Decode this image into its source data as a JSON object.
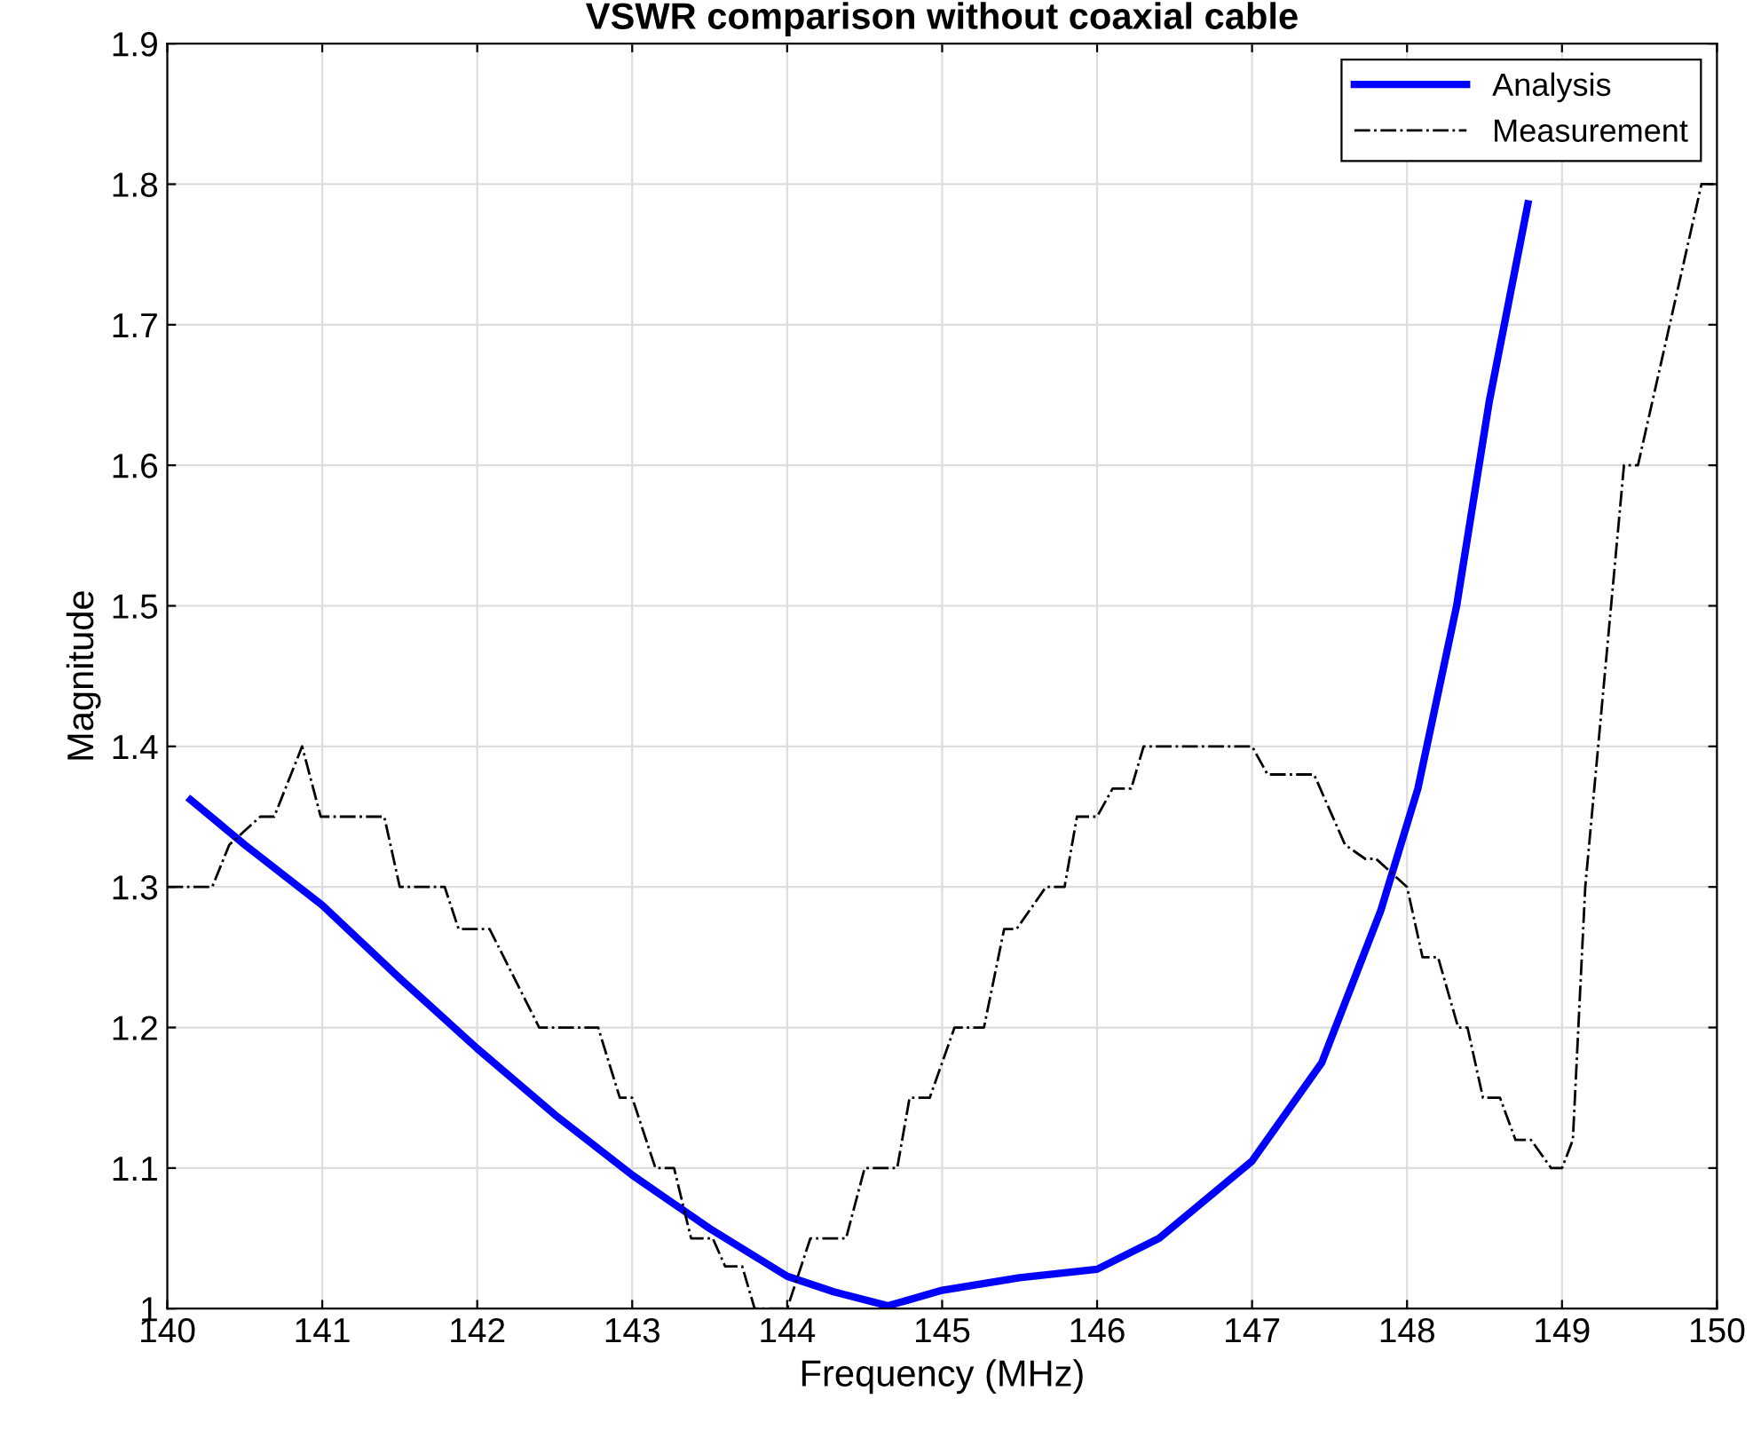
{
  "chart_data": {
    "type": "line",
    "title": "VSWR comparison without coaxial cable",
    "xlabel": "Frequency (MHz)",
    "ylabel": "Magnitude",
    "xlim": [
      140,
      150
    ],
    "ylim": [
      1,
      1.9
    ],
    "xticks": [
      140,
      141,
      142,
      143,
      144,
      145,
      146,
      147,
      148,
      149,
      150
    ],
    "yticks": [
      1,
      1.1,
      1.2,
      1.3,
      1.4,
      1.5,
      1.6,
      1.7,
      1.8,
      1.9
    ],
    "grid": true,
    "legend": "top right",
    "marker": "none",
    "series": [
      {
        "name": "Analysis",
        "color": "#0000ff",
        "line_style": "solid",
        "x": [
          140.15,
          140.5,
          141,
          141.5,
          142,
          142.5,
          143,
          143.5,
          144,
          144.3,
          144.65,
          145,
          145.5,
          146,
          146.4,
          147,
          147.45,
          147.83,
          148.07,
          148.32,
          148.53,
          148.78
        ],
        "values": [
          1.362,
          1.33,
          1.287,
          1.235,
          1.185,
          1.138,
          1.095,
          1.057,
          1.023,
          1.012,
          1.002,
          1.013,
          1.022,
          1.028,
          1.05,
          1.105,
          1.175,
          1.283,
          1.37,
          1.5,
          1.645,
          1.786
        ]
      },
      {
        "name": "Measurement",
        "color": "#000000",
        "line_style": "dashdot",
        "x": [
          140,
          140.29,
          140.4,
          140.6,
          140.69,
          140.87,
          140.99,
          141.4,
          141.5,
          141.79,
          141.88,
          142.08,
          142.4,
          142.78,
          142.92,
          143.0,
          143.15,
          143.27,
          143.38,
          143.52,
          143.6,
          143.71,
          143.79,
          144.0,
          144.15,
          144.38,
          144.5,
          144.71,
          144.79,
          144.92,
          145.08,
          145.27,
          145.4,
          145.48,
          145.67,
          145.79,
          145.87,
          146.0,
          146.1,
          146.22,
          146.3,
          147.0,
          147.1,
          147.4,
          147.6,
          147.73,
          147.8,
          148.0,
          148.1,
          148.2,
          148.33,
          148.39,
          148.49,
          148.6,
          148.7,
          148.8,
          148.93,
          149.0,
          149.07,
          149.15,
          149.4,
          149.49,
          149.9,
          149.98
        ],
        "values": [
          1.3,
          1.3,
          1.33,
          1.35,
          1.35,
          1.4,
          1.35,
          1.35,
          1.3,
          1.3,
          1.27,
          1.27,
          1.2,
          1.2,
          1.15,
          1.15,
          1.1,
          1.1,
          1.05,
          1.05,
          1.03,
          1.03,
          1.0,
          1.0,
          1.05,
          1.05,
          1.1,
          1.1,
          1.15,
          1.15,
          1.2,
          1.2,
          1.27,
          1.27,
          1.3,
          1.3,
          1.35,
          1.35,
          1.37,
          1.37,
          1.4,
          1.4,
          1.38,
          1.38,
          1.33,
          1.32,
          1.32,
          1.3,
          1.25,
          1.25,
          1.2,
          1.2,
          1.15,
          1.15,
          1.12,
          1.12,
          1.1,
          1.1,
          1.12,
          1.3,
          1.6,
          1.6,
          1.8,
          1.8
        ]
      }
    ]
  }
}
